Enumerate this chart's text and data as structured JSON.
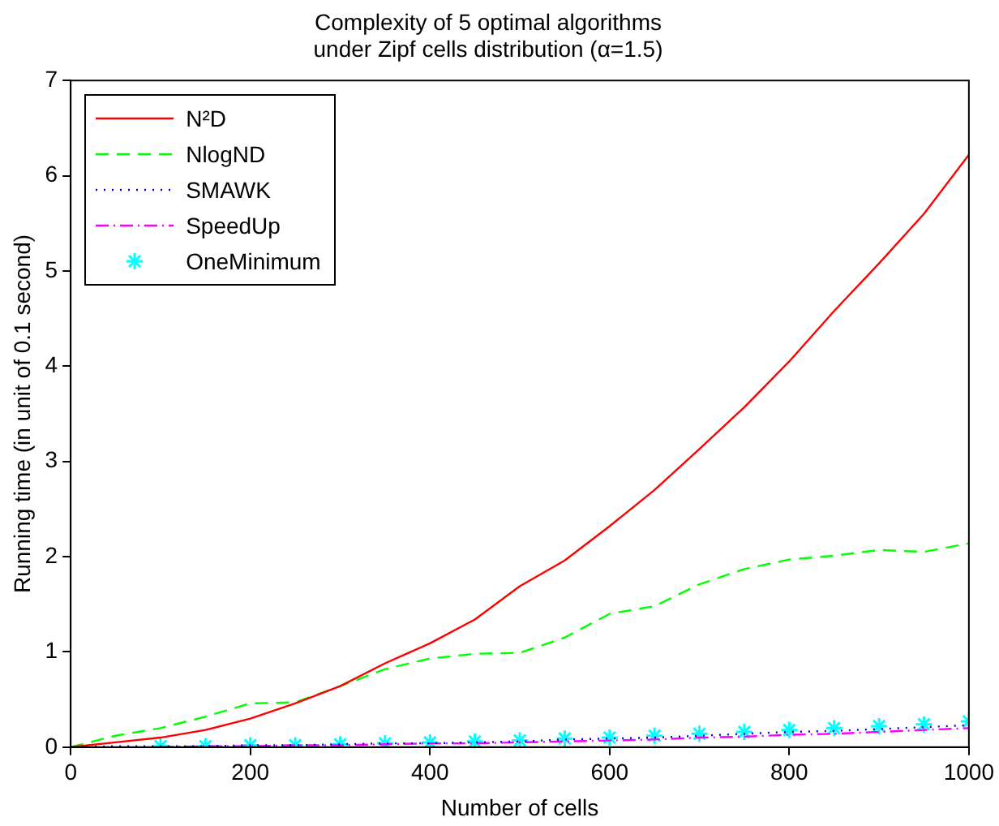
{
  "chart_data": {
    "type": "line",
    "title": "Complexity of 5 optimal algorithms\nunder Zipf cells distribution (α=1.5)",
    "xlabel": "Number of cells",
    "ylabel": "Running time (in unit of 0.1 second)",
    "x": [
      0,
      50,
      100,
      150,
      200,
      250,
      300,
      350,
      400,
      450,
      500,
      550,
      600,
      650,
      700,
      750,
      800,
      850,
      900,
      950,
      1000
    ],
    "xlim": [
      0,
      1000
    ],
    "xticks": [
      0,
      200,
      400,
      600,
      800,
      1000
    ],
    "ylim": [
      0,
      7
    ],
    "yticks": [
      0,
      1,
      2,
      3,
      4,
      5,
      6,
      7
    ],
    "grid": false,
    "legend": "top left",
    "series": [
      {
        "name": "N²D",
        "color": "#ff0000",
        "line_style": "solid",
        "marker": "none",
        "values": [
          0,
          0.05,
          0.1,
          0.18,
          0.3,
          0.46,
          0.64,
          0.88,
          1.09,
          1.34,
          1.69,
          1.96,
          2.32,
          2.7,
          3.13,
          3.57,
          4.05,
          4.58,
          5.08,
          5.6,
          6.22
        ]
      },
      {
        "name": "NlogND",
        "color": "#00ff00",
        "line_style": "dashed",
        "marker": "none",
        "values": [
          0,
          0.12,
          0.2,
          0.32,
          0.46,
          0.47,
          0.64,
          0.82,
          0.93,
          0.98,
          0.99,
          1.15,
          1.4,
          1.48,
          1.71,
          1.87,
          1.97,
          2.01,
          2.07,
          2.05,
          2.14
        ]
      },
      {
        "name": "SMAWK",
        "color": "#0000ff",
        "line_style": "dotted",
        "marker": "none",
        "values": [
          0,
          0.01,
          0.01,
          0.01,
          0.02,
          0.02,
          0.03,
          0.04,
          0.04,
          0.05,
          0.06,
          0.08,
          0.09,
          0.1,
          0.12,
          0.14,
          0.16,
          0.17,
          0.19,
          0.21,
          0.23
        ]
      },
      {
        "name": "SpeedUp",
        "color": "#ff00ff",
        "line_style": "dashdot",
        "marker": "none",
        "values": [
          null,
          null,
          0,
          0.01,
          0.01,
          0.02,
          0.02,
          0.03,
          0.04,
          0.04,
          0.05,
          0.06,
          0.07,
          0.08,
          0.1,
          0.11,
          0.13,
          0.14,
          0.16,
          0.18,
          0.2
        ]
      },
      {
        "name": "OneMinimum",
        "type": "scatter",
        "color": "#00ffff",
        "marker": "cross",
        "x": [
          100,
          150,
          200,
          250,
          300,
          350,
          400,
          450,
          500,
          550,
          600,
          650,
          700,
          750,
          800,
          850,
          900,
          950,
          1000
        ],
        "values": [
          0.01,
          0.01,
          0.02,
          0.02,
          0.03,
          0.04,
          0.05,
          0.06,
          0.07,
          0.09,
          0.1,
          0.12,
          0.14,
          0.16,
          0.18,
          0.2,
          0.22,
          0.24,
          0.27
        ]
      }
    ]
  }
}
